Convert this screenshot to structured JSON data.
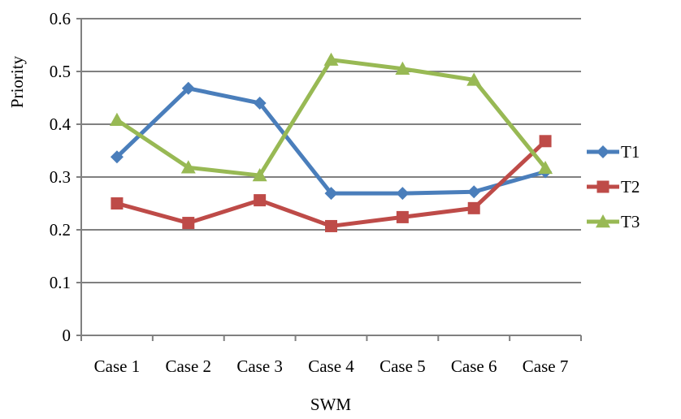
{
  "chart_data": {
    "type": "line",
    "title": "",
    "xlabel": "SWM",
    "ylabel": "Priority",
    "categories": [
      "Case 1",
      "Case 2",
      "Case 3",
      "Case 4",
      "Case 5",
      "Case 6",
      "Case 7"
    ],
    "ylim": [
      0,
      0.6
    ],
    "yticks": [
      0,
      0.1,
      0.2,
      0.3,
      0.4,
      0.5,
      0.6
    ],
    "ytick_labels": [
      "0",
      "0.1",
      "0.2",
      "0.3",
      "0.4",
      "0.5",
      "0.6"
    ],
    "grid": true,
    "legend": "right",
    "series": [
      {
        "name": "T1",
        "color": "#4a7ebb",
        "marker": "diamond",
        "values": [
          0.338,
          0.468,
          0.44,
          0.269,
          0.269,
          0.272,
          0.31
        ]
      },
      {
        "name": "T2",
        "color": "#be4b48",
        "marker": "square",
        "values": [
          0.25,
          0.213,
          0.256,
          0.207,
          0.224,
          0.241,
          0.368
        ]
      },
      {
        "name": "T3",
        "color": "#98b954",
        "marker": "triangle",
        "values": [
          0.408,
          0.318,
          0.303,
          0.522,
          0.505,
          0.484,
          0.317
        ]
      }
    ]
  }
}
